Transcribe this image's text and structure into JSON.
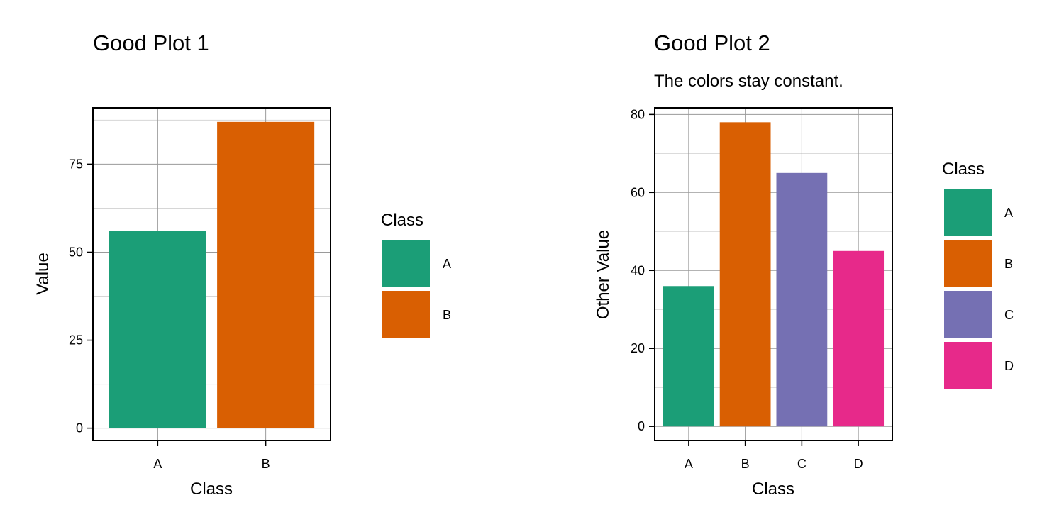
{
  "chart_data": [
    {
      "type": "bar",
      "title": "Good Plot 1",
      "subtitle": "",
      "xlabel": "Class",
      "ylabel": "Value",
      "categories": [
        "A",
        "B"
      ],
      "values": [
        56,
        87
      ],
      "colors": [
        "#1B9E77",
        "#D95F02"
      ],
      "ylim": [
        -3.5,
        91
      ],
      "yticks": [
        0,
        25,
        50,
        75
      ],
      "legend": {
        "title": "Class",
        "entries": [
          "A",
          "B"
        ],
        "position": "right"
      },
      "grid": true
    },
    {
      "type": "bar",
      "title": "Good Plot 2",
      "subtitle": "The colors stay constant.",
      "xlabel": "Class",
      "ylabel": "Other Value",
      "categories": [
        "A",
        "B",
        "C",
        "D"
      ],
      "values": [
        36,
        78,
        65,
        45
      ],
      "colors": [
        "#1B9E77",
        "#D95F02",
        "#7570B3",
        "#E7298A"
      ],
      "ylim": [
        -3.6,
        81.7
      ],
      "yticks": [
        0,
        20,
        40,
        60,
        80
      ],
      "legend": {
        "title": "Class",
        "entries": [
          "A",
          "B",
          "C",
          "D"
        ],
        "position": "right"
      },
      "grid": true
    }
  ]
}
